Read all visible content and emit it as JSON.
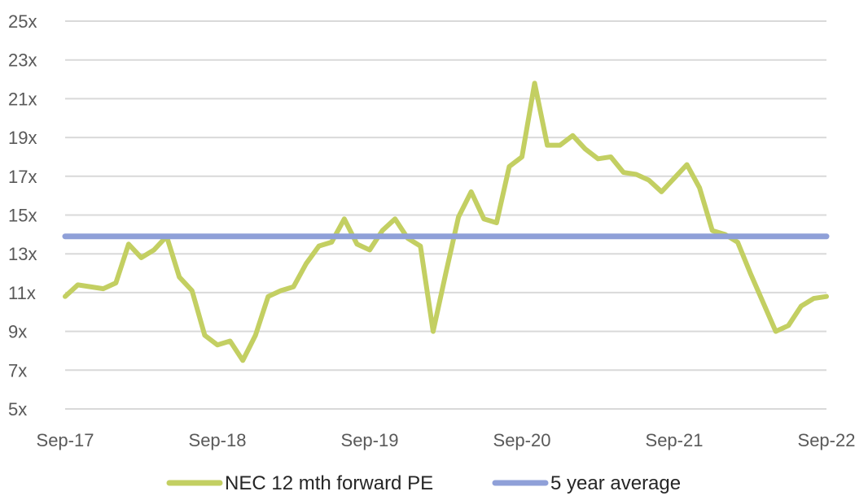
{
  "chart_data": {
    "type": "line",
    "title": "",
    "xlabel": "",
    "ylabel": "",
    "ylim": [
      5,
      25
    ],
    "y_ticks": [
      "5x",
      "7x",
      "9x",
      "11x",
      "13x",
      "15x",
      "17x",
      "19x",
      "21x",
      "23x",
      "25x"
    ],
    "x_ticks": [
      "Sep-17",
      "Sep-18",
      "Sep-19",
      "Sep-20",
      "Sep-21",
      "Sep-22"
    ],
    "grid": true,
    "legend_position": "bottom",
    "series": [
      {
        "name": "NEC 12 mth forward PE",
        "color": "#c3cf62",
        "x": [
          "2017-09",
          "2017-10",
          "2017-11",
          "2017-12",
          "2018-01",
          "2018-02",
          "2018-03",
          "2018-04",
          "2018-05",
          "2018-06",
          "2018-07",
          "2018-08",
          "2018-09",
          "2018-10",
          "2018-11",
          "2018-12",
          "2019-01",
          "2019-02",
          "2019-03",
          "2019-04",
          "2019-05",
          "2019-06",
          "2019-07",
          "2019-08",
          "2019-09",
          "2019-10",
          "2019-11",
          "2019-12",
          "2020-01",
          "2020-02",
          "2020-03",
          "2020-04",
          "2020-05",
          "2020-06",
          "2020-07",
          "2020-08",
          "2020-09",
          "2020-10",
          "2020-11",
          "2020-12",
          "2021-01",
          "2021-02",
          "2021-03",
          "2021-04",
          "2021-05",
          "2021-06",
          "2021-07",
          "2021-08",
          "2021-09",
          "2021-10",
          "2021-11",
          "2021-12",
          "2022-01",
          "2022-02",
          "2022-03",
          "2022-04",
          "2022-05",
          "2022-06",
          "2022-07",
          "2022-08",
          "2022-09"
        ],
        "values": [
          10.8,
          11.4,
          11.3,
          11.2,
          11.5,
          13.5,
          12.8,
          13.2,
          13.9,
          11.8,
          11.1,
          8.8,
          8.3,
          8.5,
          7.5,
          8.8,
          10.8,
          11.1,
          11.3,
          12.5,
          13.4,
          13.6,
          14.8,
          13.5,
          13.2,
          14.2,
          14.8,
          13.8,
          13.4,
          9.0,
          12.0,
          14.9,
          16.2,
          14.8,
          14.6,
          17.5,
          18.0,
          21.8,
          18.6,
          18.6,
          19.1,
          18.4,
          17.9,
          18.0,
          17.2,
          17.1,
          16.8,
          16.2,
          16.9,
          17.6,
          16.4,
          14.2,
          14.0,
          13.6,
          12.0,
          10.5,
          9.0,
          9.3,
          10.3,
          10.7,
          10.8
        ]
      },
      {
        "name": "5 year average",
        "color": "#8fa0d8",
        "x": [
          "2017-09",
          "2022-09"
        ],
        "values": [
          13.9,
          13.9
        ]
      }
    ]
  }
}
